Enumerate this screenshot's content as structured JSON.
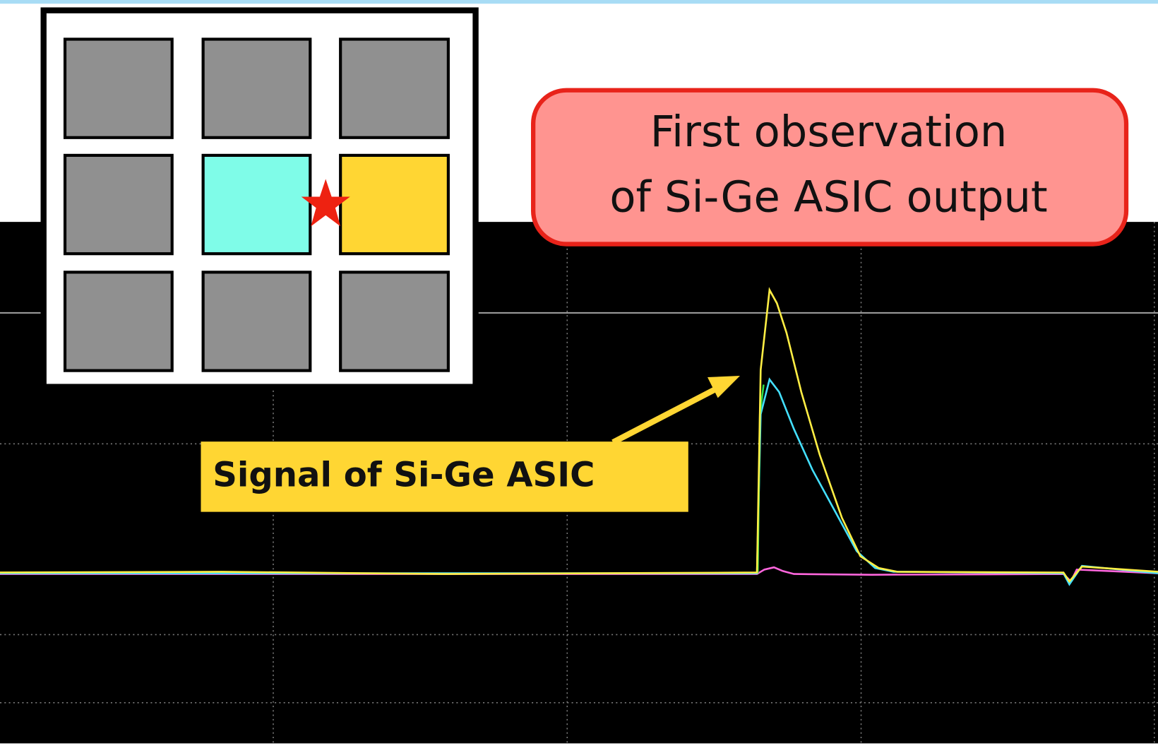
{
  "callout": {
    "lines": [
      "First observation",
      "of Si-Ge ASIC output"
    ]
  },
  "label": "Signal of Si-Ge ASIC"
}
